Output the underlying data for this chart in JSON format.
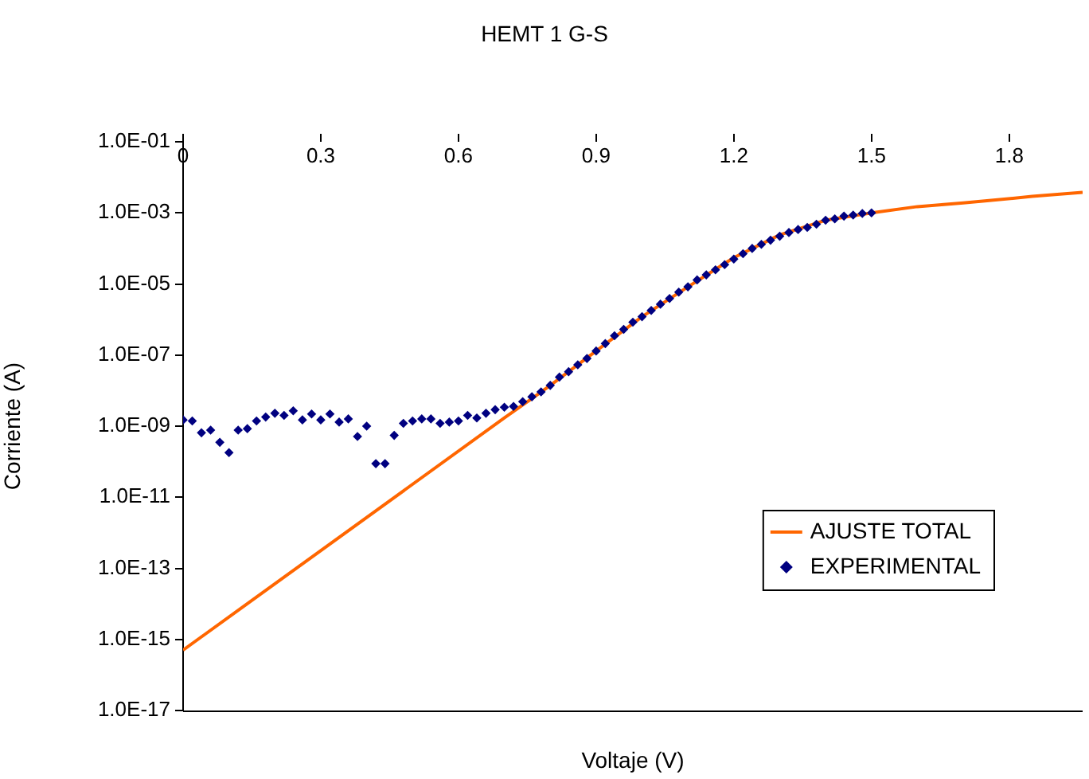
{
  "chart_data": {
    "type": "scatter",
    "title": "HEMT 1 G-S",
    "xlabel": "Voltaje (V)",
    "ylabel": "Corriente (A)",
    "log": "y",
    "grid": false,
    "legend": "bottom right",
    "xlim": [
      0,
      1.96
    ],
    "xticks": [
      0,
      0.3,
      0.6,
      0.9,
      1.2,
      1.5,
      1.8
    ],
    "ylim": [
      1e-17,
      0.1
    ],
    "yticks": [
      {
        "value": 1e-17,
        "label": "1.0E-17"
      },
      {
        "value": 1e-15,
        "label": "1.0E-15"
      },
      {
        "value": 1e-13,
        "label": "1.0E-13"
      },
      {
        "value": 1e-11,
        "label": "1.0E-11"
      },
      {
        "value": 1e-09,
        "label": "1.0E-09"
      },
      {
        "value": 1e-07,
        "label": "1.0E-07"
      },
      {
        "value": 1e-05,
        "label": "1.0E-05"
      },
      {
        "value": 0.001,
        "label": "1.0E-03"
      },
      {
        "value": 0.1,
        "label": "1.0E-01"
      }
    ],
    "series": [
      {
        "name": "AJUSTE TOTAL",
        "type": "line",
        "marker": "none",
        "line_style": "solid",
        "color": "#ff6600",
        "x": [
          0,
          0.7,
          0.76,
          0.8,
          0.9,
          1.0,
          1.1,
          1.2,
          1.3,
          1.4,
          1.5,
          1.6,
          1.7,
          1.85,
          1.96
        ],
        "values": [
          5e-16,
          1.7e-09,
          6e-09,
          1.4e-08,
          1.3e-07,
          1.2e-06,
          8.3e-06,
          5.5e-05,
          0.00024,
          0.00062,
          0.001,
          0.0015,
          0.0019,
          0.0029,
          0.0038
        ]
      },
      {
        "name": "EXPERIMENTAL",
        "marker": "diamond",
        "color": "#000080",
        "x": [
          0,
          0.02,
          0.04,
          0.06,
          0.08,
          0.1,
          0.12,
          0.14,
          0.16,
          0.18,
          0.2,
          0.22,
          0.24,
          0.26,
          0.28,
          0.3,
          0.32,
          0.34,
          0.36,
          0.38,
          0.4,
          0.42,
          0.44,
          0.46,
          0.48,
          0.5,
          0.52,
          0.54,
          0.56,
          0.58,
          0.6,
          0.62,
          0.64,
          0.66,
          0.68,
          0.7,
          0.72,
          0.74,
          0.76,
          0.78,
          0.8,
          0.82,
          0.84,
          0.86,
          0.88,
          0.9,
          0.92,
          0.94,
          0.96,
          0.98,
          1.0,
          1.02,
          1.04,
          1.06,
          1.08,
          1.1,
          1.12,
          1.14,
          1.16,
          1.18,
          1.2,
          1.22,
          1.24,
          1.26,
          1.28,
          1.3,
          1.32,
          1.34,
          1.36,
          1.38,
          1.4,
          1.42,
          1.44,
          1.46,
          1.48,
          1.5
        ],
        "values": [
          1.5e-09,
          1.4e-09,
          6.5e-10,
          7.7e-10,
          3.5e-10,
          1.8e-10,
          7.7e-10,
          8.5e-10,
          1.4e-09,
          1.8e-09,
          2.3e-09,
          2e-09,
          2.7e-09,
          1.5e-09,
          2.2e-09,
          1.5e-09,
          2.2e-09,
          1.3e-09,
          1.6e-09,
          5.1e-10,
          1e-09,
          8.8e-11,
          8.8e-11,
          5.5e-10,
          1.2e-09,
          1.4e-09,
          1.6e-09,
          1.6e-09,
          1.2e-09,
          1.3e-09,
          1.4e-09,
          2e-09,
          1.7e-09,
          2.3e-09,
          2.9e-09,
          3.4e-09,
          3.6e-09,
          4.9e-09,
          6.7e-09,
          9.2e-09,
          1.4e-08,
          2.4e-08,
          3.4e-08,
          5.3e-08,
          8e-08,
          1.3e-07,
          2.1e-07,
          3.5e-07,
          5.3e-07,
          8.4e-07,
          1.2e-06,
          1.8e-06,
          2.7e-06,
          3.9e-06,
          5.9e-06,
          8.3e-06,
          1.3e-05,
          1.8e-05,
          2.5e-05,
          3.5e-05,
          5e-05,
          7.1e-05,
          0.0001,
          0.00013,
          0.00017,
          0.00022,
          0.00028,
          0.00034,
          0.00039,
          0.00048,
          0.00062,
          0.00068,
          0.00081,
          0.00087,
          0.00096,
          0.001
        ]
      }
    ]
  }
}
